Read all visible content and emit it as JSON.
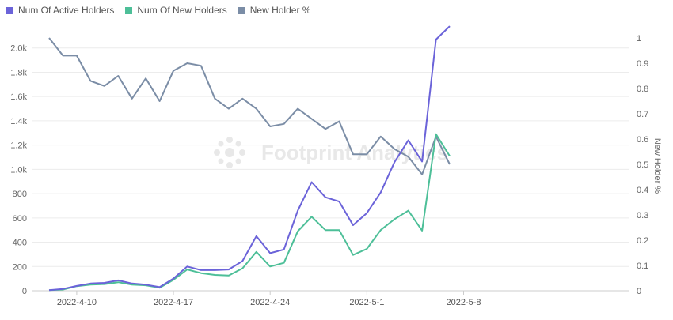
{
  "chart_data": {
    "type": "line",
    "x_tick_labels": [
      "2022-4-10",
      "2022-4-17",
      "2022-4-24",
      "2022-5-1",
      "2022-5-8"
    ],
    "x": [
      "2022-4-8",
      "2022-4-9",
      "2022-4-10",
      "2022-4-11",
      "2022-4-12",
      "2022-4-13",
      "2022-4-14",
      "2022-4-15",
      "2022-4-16",
      "2022-4-17",
      "2022-4-18",
      "2022-4-19",
      "2022-4-20",
      "2022-4-21",
      "2022-4-22",
      "2022-4-23",
      "2022-4-24",
      "2022-4-25",
      "2022-4-26",
      "2022-4-27",
      "2022-4-28",
      "2022-4-29",
      "2022-4-30",
      "2022-5-1",
      "2022-5-2",
      "2022-5-3",
      "2022-5-4",
      "2022-5-5",
      "2022-5-6",
      "2022-5-7",
      "2022-5-8"
    ],
    "left_axis": {
      "ticks": [
        "0",
        "200",
        "400",
        "600",
        "800",
        "1.0k",
        "1.2k",
        "1.4k",
        "1.6k",
        "1.8k",
        "2.0k"
      ],
      "ylim": [
        0,
        2200
      ]
    },
    "right_axis": {
      "label": "New Holder %",
      "ticks": [
        "0",
        "0.1",
        "0.2",
        "0.3",
        "0.4",
        "0.5",
        "0.6",
        "0.7",
        "0.8",
        "0.9",
        "1"
      ],
      "ylim": [
        0,
        1
      ]
    },
    "series": [
      {
        "name": "Num Of Active Holders",
        "axis": "left",
        "color": "#6b63d9",
        "values": [
          5,
          15,
          40,
          60,
          65,
          85,
          60,
          50,
          30,
          100,
          200,
          170,
          170,
          175,
          245,
          450,
          310,
          340,
          660,
          895,
          770,
          735,
          540,
          640,
          810,
          1060,
          1240,
          1065,
          2070,
          2180,
          null
        ]
      },
      {
        "name": "Num Of New Holders",
        "axis": "left",
        "color": "#4dbf98",
        "values": [
          5,
          10,
          38,
          50,
          55,
          70,
          50,
          45,
          25,
          90,
          175,
          145,
          130,
          125,
          185,
          320,
          200,
          230,
          490,
          610,
          500,
          500,
          295,
          345,
          500,
          590,
          660,
          495,
          1290,
          1110,
          null
        ]
      },
      {
        "name": "New Holder %",
        "axis": "right",
        "color": "#7b8da6",
        "values": [
          1.0,
          0.93,
          0.93,
          0.83,
          0.81,
          0.85,
          0.76,
          0.84,
          0.75,
          0.87,
          0.9,
          0.89,
          0.76,
          0.72,
          0.76,
          0.72,
          0.65,
          0.66,
          0.72,
          0.68,
          0.64,
          0.67,
          0.54,
          0.54,
          0.61,
          0.56,
          0.53,
          0.46,
          0.61,
          0.5,
          null
        ]
      }
    ],
    "watermark": "Footprint Analytics",
    "grid": "horizontal",
    "legend_position": "top-left"
  }
}
